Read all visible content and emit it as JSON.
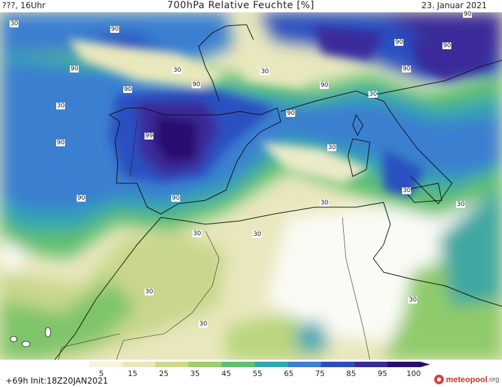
{
  "header": {
    "left": "???, 16Uhr",
    "title": "700hPa Relative Feuchte [%]",
    "date": "23. Januar 2021"
  },
  "map": {
    "contour_labels": [
      "90",
      "90",
      "90",
      "90",
      "90",
      "90",
      "90",
      "90",
      "90",
      "90",
      "90",
      "90",
      "90",
      "99",
      "30",
      "30",
      "30",
      "30",
      "30",
      "30",
      "30",
      "30",
      "30",
      "30",
      "30",
      "30",
      "30",
      "30"
    ]
  },
  "legend": {
    "ticks": [
      "5",
      "15",
      "25",
      "35",
      "45",
      "55",
      "65",
      "75",
      "85",
      "95",
      "100"
    ],
    "colors": [
      "#ffffff",
      "#f7f3d9",
      "#e9e7b8",
      "#c9d98a",
      "#9fcd6a",
      "#5fbf6e",
      "#33a6b0",
      "#3a7fd0",
      "#2b4fc0",
      "#3a2b9a",
      "#2a0f6e"
    ]
  },
  "footer": {
    "init": "+69h Init:18Z20JAN2021",
    "logo": "meteopool",
    "logo_suffix": ".org"
  }
}
